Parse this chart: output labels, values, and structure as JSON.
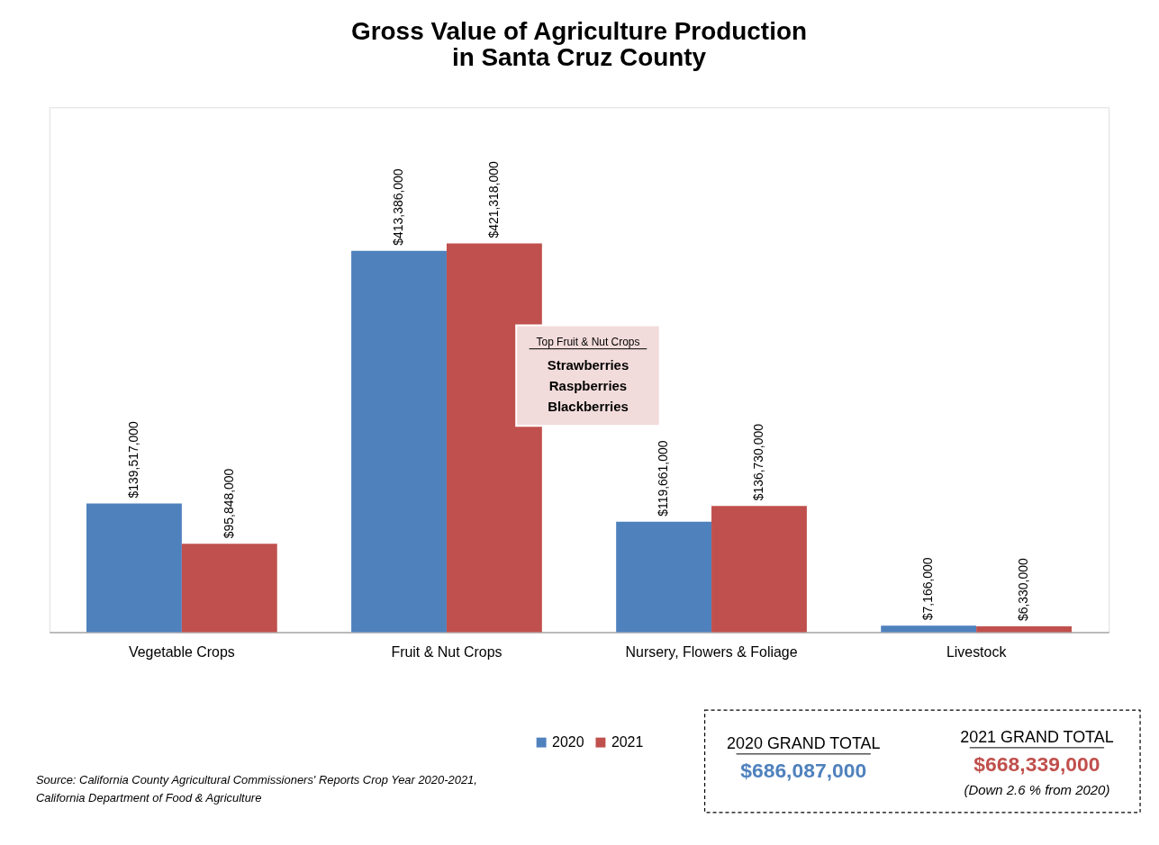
{
  "chart_data": {
    "type": "bar",
    "title": [
      "Gross Value of Agriculture Production",
      "in Santa Cruz County"
    ],
    "categories": [
      "Vegetable Crops",
      "Fruit & Nut Crops",
      "Nursery, Flowers & Foliage",
      "Livestock"
    ],
    "series": [
      {
        "name": "2020",
        "color": "#4f81bd",
        "values": [
          139517000,
          413386000,
          119661000,
          7166000
        ],
        "value_labels": [
          "$139,517,000",
          "$413,386,000",
          "$119,661,000",
          "$7,166,000"
        ]
      },
      {
        "name": "2021",
        "color": "#c0504d",
        "values": [
          95848000,
          421318000,
          136730000,
          6330000
        ],
        "value_labels": [
          "$95,848,000",
          "$421,318,000",
          "$136,730,000",
          "$6,330,000"
        ]
      }
    ],
    "annotations": [
      "Top Fruit & Nut Crops",
      "Strawberries",
      "Raspberries",
      "Blackberries",
      "2020 GRAND TOTAL",
      "$686,087,000",
      "2021 GRAND TOTAL",
      "$668,339,000",
      "(Down 2.6 % from 2020)",
      "Source:  California County Agricultural Commissioners' Reports Crop Year 2020-2021,",
      "California Department of Food & Agriculture"
    ],
    "legend": "bottom"
  }
}
